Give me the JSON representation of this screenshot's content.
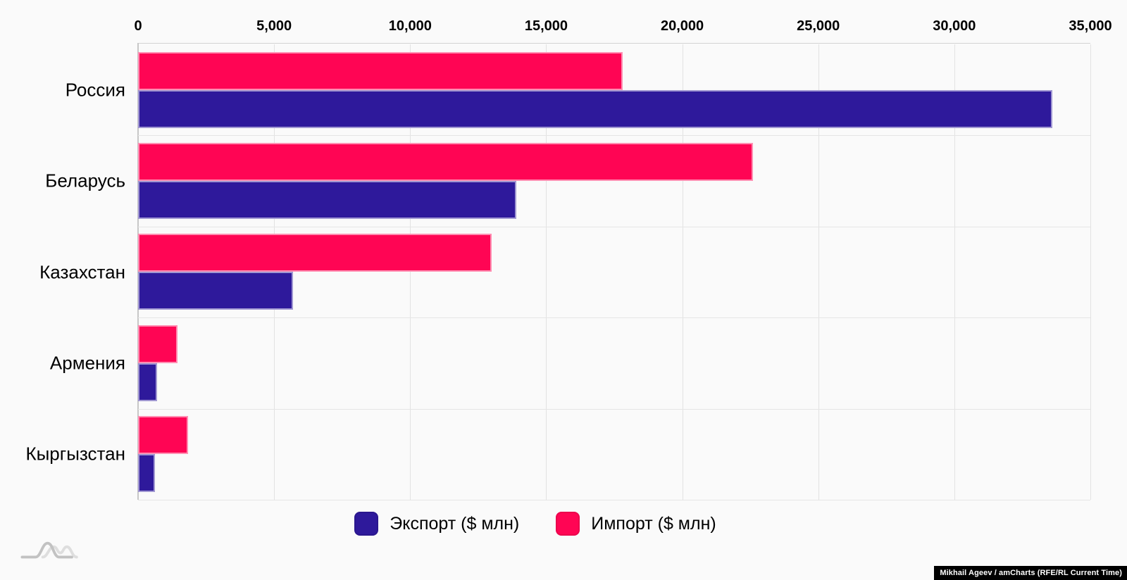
{
  "chart_data": {
    "type": "bar",
    "orientation": "horizontal",
    "title": "",
    "categories": [
      "Россия",
      "Беларусь",
      "Казахстан",
      "Армения",
      "Кыргызстан"
    ],
    "series": [
      {
        "name": "Экспорт ($ млн)",
        "color": "#2e199b",
        "values": [
          33600,
          13900,
          5700,
          690,
          610
        ]
      },
      {
        "name": "Импорт ($ млн)",
        "color": "#ff0554",
        "values": [
          17800,
          22600,
          13000,
          1460,
          1830
        ]
      }
    ],
    "bar_draw_order_per_category": [
      "Импорт ($ млн)",
      "Экспорт ($ млн)"
    ],
    "xlim": [
      0,
      35000
    ],
    "x_ticks": [
      0,
      5000,
      10000,
      15000,
      20000,
      25000,
      30000,
      35000
    ],
    "x_tick_labels": [
      "0",
      "5,000",
      "10,000",
      "15,000",
      "20,000",
      "25,000",
      "30,000",
      "35,000"
    ],
    "value_axis_position": "top",
    "grid": true,
    "legend_position": "bottom"
  },
  "legend": {
    "items": [
      {
        "label": "Экспорт ($ млн)",
        "color": "#2e199b"
      },
      {
        "label": "Импорт ($ млн)",
        "color": "#ff0554"
      }
    ]
  },
  "attribution": {
    "text": "Mikhail Ageev / amCharts (RFE/RL Current Time)"
  },
  "branding": {
    "logo": "amcharts-logo"
  }
}
